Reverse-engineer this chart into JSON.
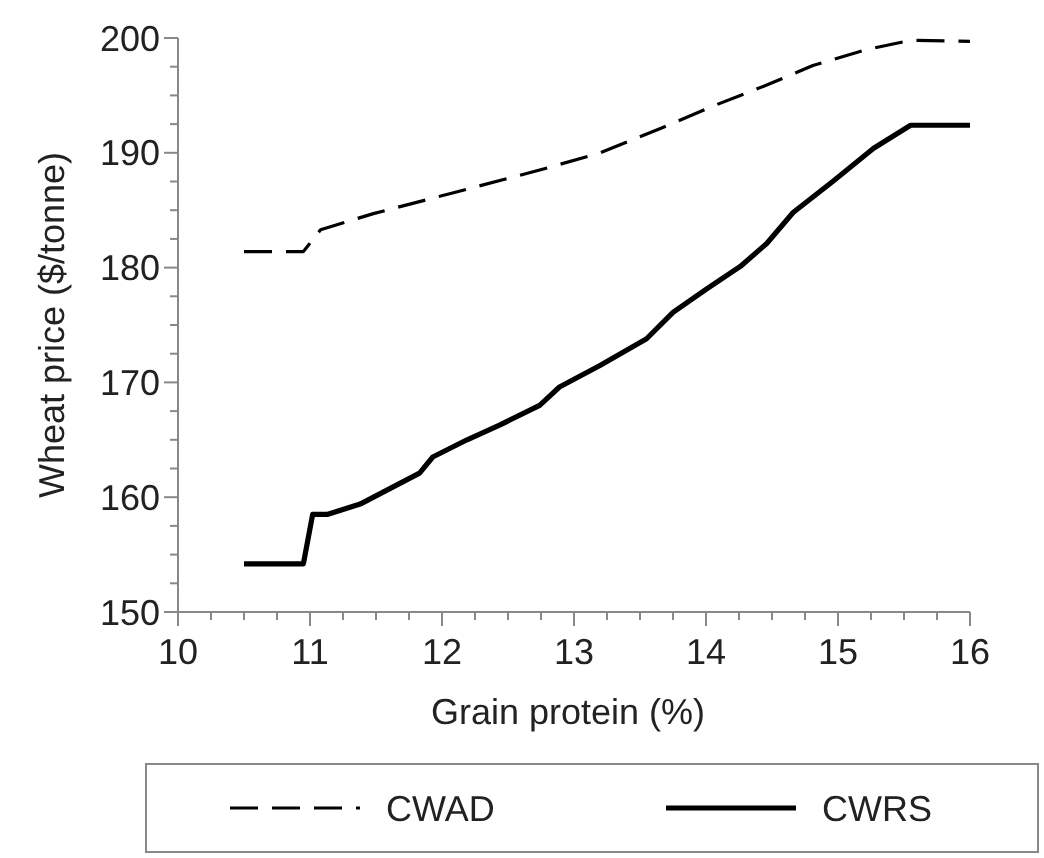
{
  "chart_data": {
    "type": "line",
    "xlabel": "Grain protein (%)",
    "ylabel": "Wheat price ($/tonne)",
    "xlim": [
      10,
      16
    ],
    "xticks": [
      10,
      {
        "value": 10.25,
        "label": null
      },
      {
        "value": 10.5,
        "label": null
      },
      {
        "value": 10.75,
        "label": null
      },
      11,
      {
        "value": 11.25,
        "label": null
      },
      {
        "value": 11.5,
        "label": null
      },
      {
        "value": 11.75,
        "label": null
      },
      12,
      {
        "value": 12.25,
        "label": null
      },
      {
        "value": 12.5,
        "label": null
      },
      {
        "value": 12.75,
        "label": null
      },
      13,
      {
        "value": 13.25,
        "label": null
      },
      {
        "value": 13.5,
        "label": null
      },
      {
        "value": 13.75,
        "label": null
      },
      14,
      {
        "value": 14.25,
        "label": null
      },
      {
        "value": 14.5,
        "label": null
      },
      {
        "value": 14.75,
        "label": null
      },
      15,
      {
        "value": 15.25,
        "label": null
      },
      {
        "value": 15.5,
        "label": null
      },
      {
        "value": 15.75,
        "label": null
      },
      16
    ],
    "ylim": [
      150,
      200
    ],
    "yticks": [
      150,
      {
        "value": 152.5,
        "label": null
      },
      {
        "value": 155,
        "label": null
      },
      {
        "value": 157.5,
        "label": null
      },
      160,
      {
        "value": 162.5,
        "label": null
      },
      {
        "value": 165,
        "label": null
      },
      {
        "value": 167.5,
        "label": null
      },
      170,
      {
        "value": 172.5,
        "label": null
      },
      {
        "value": 175,
        "label": null
      },
      {
        "value": 177.5,
        "label": null
      },
      180,
      {
        "value": 182.5,
        "label": null
      },
      {
        "value": 185,
        "label": null
      },
      {
        "value": 187.5,
        "label": null
      },
      190,
      {
        "value": 192.5,
        "label": null
      },
      {
        "value": 195,
        "label": null
      },
      {
        "value": 197.5,
        "label": null
      },
      200
    ],
    "legend": "bottom",
    "marker": "none",
    "grid": false,
    "series": [
      {
        "name": "CWAD",
        "color": "#000000",
        "line_style": "dashed",
        "x": [
          10.5,
          10.95,
          11.08,
          11.48,
          12.08,
          12.74,
          13.2,
          13.65,
          14.06,
          14.46,
          14.81,
          15.22,
          15.55,
          16
        ],
        "values": [
          181.4,
          181.4,
          183.3,
          184.7,
          186.5,
          188.5,
          190,
          192.1,
          194.1,
          195.9,
          197.6,
          199,
          199.8,
          199.7
        ]
      },
      {
        "name": "CWRS",
        "color": "#000000",
        "line_style": "solid",
        "x": [
          10.5,
          10.95,
          11.02,
          11.13,
          11.38,
          11.63,
          11.83,
          11.93,
          12.19,
          12.44,
          12.74,
          12.89,
          13.2,
          13.55,
          13.75,
          14,
          14.26,
          14.46,
          14.66,
          14.96,
          15.27,
          15.55,
          16
        ],
        "values": [
          154.2,
          154.2,
          158.5,
          158.5,
          159.4,
          160.9,
          162.1,
          163.5,
          165,
          166.3,
          168,
          169.6,
          171.5,
          173.8,
          176.1,
          178.1,
          180.1,
          182.1,
          184.8,
          187.5,
          190.4,
          192.4,
          192.4
        ]
      }
    ]
  }
}
